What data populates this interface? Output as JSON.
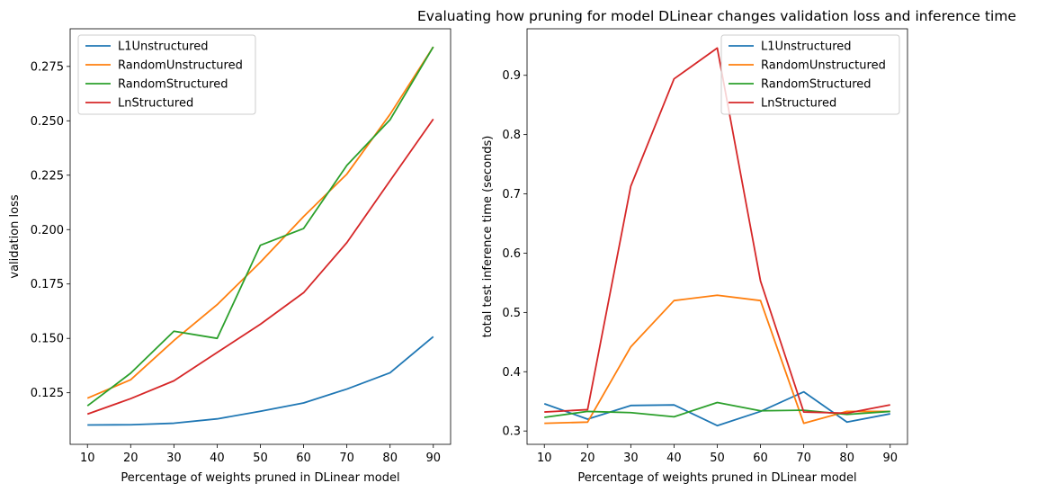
{
  "title": "Evaluating how pruning for model DLinear changes validation loss and inference time",
  "chart_data": [
    {
      "type": "line",
      "xlabel": "Percentage of weights pruned in DLinear model",
      "ylabel": "validation loss",
      "x": [
        10,
        20,
        30,
        40,
        50,
        60,
        70,
        80,
        90
      ],
      "xticks": [
        10,
        20,
        30,
        40,
        50,
        60,
        70,
        80,
        90
      ],
      "yticks": [
        0.125,
        0.15,
        0.175,
        0.2,
        0.225,
        0.25,
        0.275
      ],
      "ytick_labels": [
        "0.125",
        "0.150",
        "0.175",
        "0.200",
        "0.225",
        "0.250",
        "0.275"
      ],
      "xlim": [
        6,
        94
      ],
      "ylim": [
        0.1013,
        0.2923
      ],
      "legend": "top-left",
      "grid": false,
      "series": [
        {
          "name": "L1Unstructured",
          "color": "#1f77b4",
          "values": [
            0.1102,
            0.1103,
            0.111,
            0.113,
            0.1165,
            0.1203,
            0.1267,
            0.1342,
            0.1508
          ]
        },
        {
          "name": "RandomUnstructured",
          "color": "#ff7f0e",
          "values": [
            0.1225,
            0.131,
            0.149,
            0.1655,
            0.185,
            0.206,
            0.2255,
            0.253,
            0.284
          ]
        },
        {
          "name": "RandomStructured",
          "color": "#2ca02c",
          "values": [
            0.119,
            0.134,
            0.1533,
            0.15,
            0.1928,
            0.2005,
            0.2295,
            0.2505,
            0.284
          ]
        },
        {
          "name": "LnStructured",
          "color": "#d62728",
          "values": [
            0.1152,
            0.1223,
            0.1305,
            0.1435,
            0.1565,
            0.171,
            0.194,
            0.2225,
            0.2508
          ]
        }
      ]
    },
    {
      "type": "line",
      "xlabel": "Percentage of weights pruned in DLinear model",
      "ylabel": "total test inference time (seconds)",
      "x": [
        10,
        20,
        30,
        40,
        50,
        60,
        70,
        80,
        90
      ],
      "xticks": [
        10,
        20,
        30,
        40,
        50,
        60,
        70,
        80,
        90
      ],
      "yticks": [
        0.3,
        0.4,
        0.5,
        0.6,
        0.7,
        0.8,
        0.9
      ],
      "ytick_labels": [
        "0.3",
        "0.4",
        "0.5",
        "0.6",
        "0.7",
        "0.8",
        "0.9"
      ],
      "xlim": [
        6,
        94
      ],
      "ylim": [
        0.2775,
        0.9785
      ],
      "legend": "top-right",
      "grid": false,
      "series": [
        {
          "name": "L1Unstructured",
          "color": "#1f77b4",
          "values": [
            0.346,
            0.32,
            0.343,
            0.344,
            0.309,
            0.333,
            0.366,
            0.315,
            0.329
          ]
        },
        {
          "name": "RandomUnstructured",
          "color": "#ff7f0e",
          "values": [
            0.313,
            0.315,
            0.442,
            0.52,
            0.529,
            0.52,
            0.313,
            0.333,
            0.333
          ]
        },
        {
          "name": "RandomStructured",
          "color": "#2ca02c",
          "values": [
            0.323,
            0.333,
            0.331,
            0.324,
            0.348,
            0.334,
            0.335,
            0.328,
            0.333
          ]
        },
        {
          "name": "LnStructured",
          "color": "#d62728",
          "values": [
            0.332,
            0.336,
            0.713,
            0.894,
            0.946,
            0.553,
            0.332,
            0.33,
            0.344
          ]
        }
      ]
    }
  ]
}
